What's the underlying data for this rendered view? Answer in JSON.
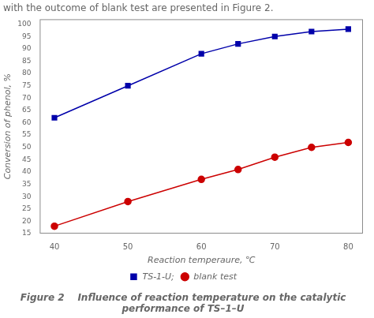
{
  "chart_data": {
    "type": "line",
    "title": [
      "Figure 2    Influence of reaction temperature on the catalytic",
      "performance of TS–1–U"
    ],
    "annotations": [
      "with the outcome of blank test are presented in Figure 2."
    ],
    "x": [
      40,
      50,
      60,
      65,
      70,
      75,
      80
    ],
    "series": [
      {
        "name": "TS-1-U;",
        "color": "#0000AA",
        "marker": "square",
        "values": [
          62,
          75,
          88,
          92,
          95,
          97,
          98
        ]
      },
      {
        "name": "blank test",
        "color": "#CC0000",
        "marker": "circle",
        "values": [
          18,
          28,
          37,
          41,
          46,
          50,
          52
        ]
      }
    ],
    "xlabel": "Reaction temperaure, ℃",
    "ylabel": "Conversion of phenol, %",
    "xlim": [
      38,
      82
    ],
    "ylim": [
      15,
      102
    ],
    "xticks": [
      40,
      50,
      60,
      70,
      80
    ],
    "yticks": [
      15,
      20,
      25,
      30,
      35,
      40,
      45,
      50,
      55,
      60,
      65,
      70,
      75,
      80,
      85,
      90,
      95,
      100
    ],
    "grid": false,
    "legend": "bottom"
  }
}
